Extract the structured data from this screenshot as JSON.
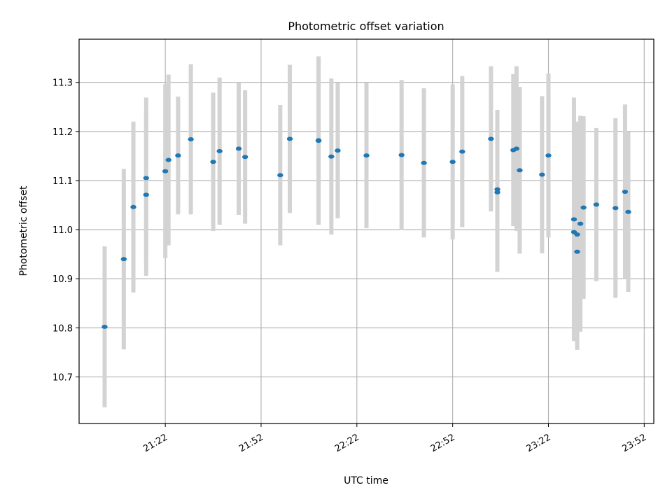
{
  "chart_data": {
    "type": "scatter",
    "title": "Photometric offset variation",
    "xlabel": "UTC time",
    "ylabel": "Photometric offset",
    "grid": true,
    "xlim": [
      "20:55",
      "23:55"
    ],
    "ylim": [
      10.605,
      11.388
    ],
    "x_ticks": [
      "21:22",
      "21:52",
      "22:22",
      "22:52",
      "23:22",
      "23:52"
    ],
    "y_ticks": [
      "10.7",
      "10.8",
      "10.9",
      "11.0",
      "11.1",
      "11.2",
      "11.3"
    ],
    "colors": {
      "point": "#1f77b4",
      "errorbar": "#d3d3d3",
      "grid": "#b0b0b0"
    },
    "series": [
      {
        "x": [
          "21:03",
          "21:09",
          "21:12",
          "21:16",
          "21:16",
          "21:22",
          "21:23",
          "21:26",
          "21:30",
          "21:37",
          "21:39",
          "21:45",
          "21:47",
          "21:58",
          "22:01",
          "22:10",
          "22:10",
          "22:14",
          "22:16",
          "22:25",
          "22:36",
          "22:43",
          "22:52",
          "22:55",
          "23:04",
          "23:06",
          "23:06",
          "23:11",
          "23:12",
          "23:13",
          "23:20",
          "23:22",
          "23:30",
          "23:30",
          "23:31",
          "23:31",
          "23:32",
          "23:33",
          "23:37",
          "23:43",
          "23:46",
          "23:47"
        ],
        "y": [
          10.802,
          10.94,
          11.046,
          11.105,
          11.071,
          11.119,
          11.142,
          11.151,
          11.184,
          11.138,
          11.16,
          11.165,
          11.148,
          11.111,
          11.185,
          11.182,
          11.181,
          11.149,
          11.161,
          11.151,
          11.152,
          11.136,
          11.138,
          11.159,
          11.185,
          11.082,
          11.076,
          11.162,
          11.165,
          11.121,
          11.112,
          11.151,
          11.021,
          10.995,
          10.99,
          10.955,
          11.012,
          11.045,
          11.051,
          11.044,
          11.077,
          11.036
        ],
        "yerr": [
          0.164,
          0.184,
          0.174,
          0.164,
          0.165,
          0.177,
          0.174,
          0.12,
          0.153,
          0.141,
          0.15,
          0.135,
          0.136,
          0.143,
          0.151,
          0.171,
          0.171,
          0.159,
          0.138,
          0.148,
          0.153,
          0.152,
          0.158,
          0.154,
          0.148,
          0.162,
          0.162,
          0.155,
          0.168,
          0.17,
          0.16,
          0.167,
          0.248,
          0.22,
          0.23,
          0.2,
          0.22,
          0.186,
          0.156,
          0.183,
          0.178,
          0.163
        ]
      }
    ]
  }
}
